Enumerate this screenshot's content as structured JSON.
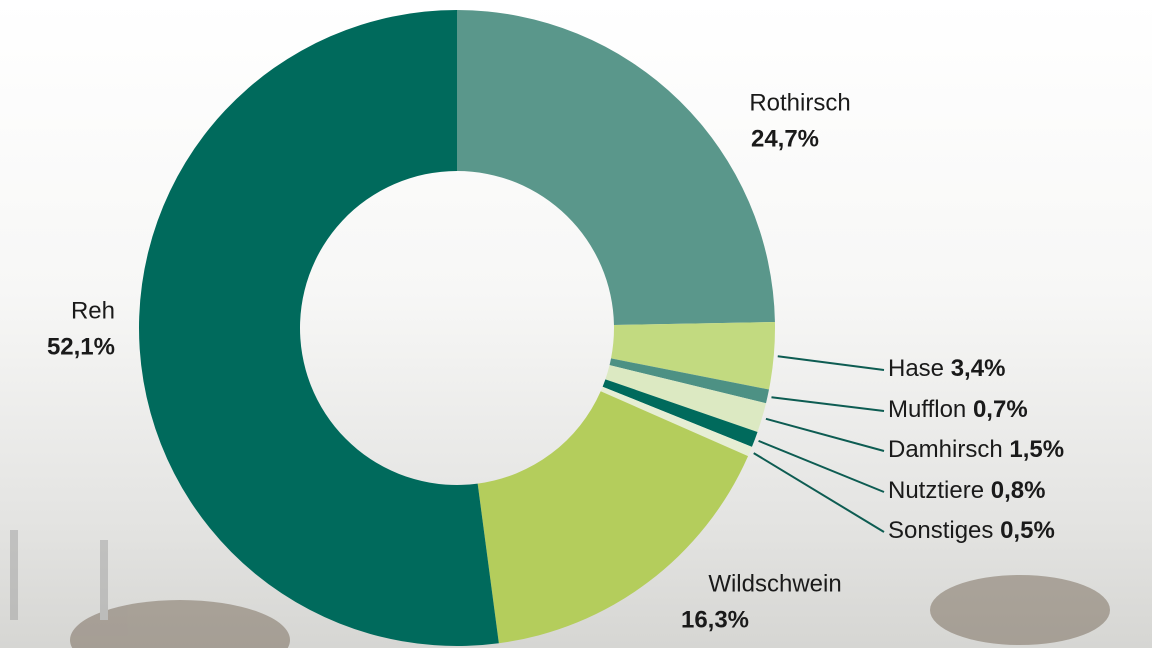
{
  "chart_data": {
    "type": "donut",
    "categories": [
      "Rothirsch",
      "Hase",
      "Mufflon",
      "Damhirsch",
      "Nutztiere",
      "Sonstiges",
      "Wildschwein",
      "Reh"
    ],
    "values": [
      24.7,
      3.4,
      0.7,
      1.5,
      0.8,
      0.5,
      16.3,
      52.1
    ],
    "value_labels": [
      "24,7%",
      "3,4%",
      "0,7%",
      "1,5%",
      "0,8%",
      "0,5%",
      "16,3%",
      "52,1%"
    ],
    "colors": [
      "#5a978b",
      "#c2da80",
      "#4d9184",
      "#dce9c2",
      "#006a5c",
      "#e6eed4",
      "#b4cd5c",
      "#006a5c"
    ]
  }
}
